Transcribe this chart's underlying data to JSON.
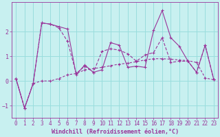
{
  "xlabel": "Windchill (Refroidissement éolien,°C)",
  "background_color": "#c8f0f0",
  "grid_color": "#99dddd",
  "line_color": "#993399",
  "xlim": [
    -0.5,
    23.5
  ],
  "ylim": [
    -1.5,
    3.2
  ],
  "xticks": [
    0,
    1,
    2,
    3,
    4,
    5,
    6,
    7,
    8,
    9,
    10,
    11,
    12,
    13,
    14,
    15,
    16,
    17,
    18,
    19,
    20,
    21,
    22,
    23
  ],
  "yticks": [
    -1,
    0,
    1,
    2
  ],
  "series1_x": [
    0,
    1,
    2,
    3,
    4,
    5,
    6,
    7,
    8,
    9,
    10,
    11,
    12,
    13,
    14,
    15,
    16,
    17,
    18,
    19,
    20,
    21,
    22,
    23
  ],
  "series1_y": [
    0.1,
    -1.1,
    -0.1,
    2.35,
    2.3,
    2.2,
    2.1,
    0.25,
    0.65,
    0.35,
    0.45,
    1.55,
    1.45,
    0.55,
    0.6,
    0.55,
    2.05,
    2.85,
    1.75,
    1.4,
    0.8,
    0.35,
    1.45,
    0.05
  ],
  "series2_x": [
    0,
    1,
    2,
    3,
    4,
    5,
    6,
    7,
    8,
    9,
    10,
    11,
    12,
    13,
    14,
    15,
    16,
    17,
    18,
    19,
    20,
    21,
    22,
    23
  ],
  "series2_y": [
    0.1,
    -1.1,
    -0.1,
    0.0,
    0.0,
    0.1,
    0.25,
    0.3,
    0.45,
    0.5,
    0.55,
    0.62,
    0.68,
    0.72,
    0.78,
    0.85,
    0.9,
    0.9,
    0.88,
    0.85,
    0.82,
    0.75,
    0.12,
    0.05
  ],
  "series3_x": [
    0,
    1,
    2,
    3,
    4,
    5,
    6,
    7,
    8,
    9,
    10,
    11,
    12,
    13,
    14,
    15,
    16,
    17,
    18,
    19,
    20,
    21,
    22,
    23
  ],
  "series3_y": [
    0.1,
    -1.1,
    -0.1,
    2.35,
    2.3,
    2.15,
    1.6,
    0.3,
    0.6,
    0.35,
    1.2,
    1.3,
    1.25,
    1.1,
    0.8,
    1.05,
    1.15,
    1.75,
    0.75,
    0.8,
    0.8,
    0.35,
    1.45,
    0.05
  ],
  "xlabel_fontsize": 6,
  "tick_fontsize": 5.5
}
